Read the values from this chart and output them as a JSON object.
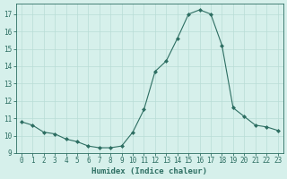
{
  "x": [
    0,
    1,
    2,
    3,
    4,
    5,
    6,
    7,
    8,
    9,
    10,
    11,
    12,
    13,
    14,
    15,
    16,
    17,
    18,
    19,
    20,
    21,
    22,
    23
  ],
  "y": [
    10.8,
    10.6,
    10.2,
    10.1,
    9.8,
    9.65,
    9.4,
    9.3,
    9.3,
    9.4,
    10.2,
    11.5,
    13.7,
    14.3,
    15.6,
    17.0,
    17.25,
    17.0,
    15.2,
    11.6,
    11.1,
    10.6,
    10.5,
    10.3
  ],
  "xlabel": "Humidex (Indice chaleur)",
  "ylim": [
    9,
    17.6
  ],
  "xlim": [
    -0.5,
    23.5
  ],
  "yticks": [
    9,
    10,
    11,
    12,
    13,
    14,
    15,
    16,
    17
  ],
  "xticks": [
    0,
    1,
    2,
    3,
    4,
    5,
    6,
    7,
    8,
    9,
    10,
    11,
    12,
    13,
    14,
    15,
    16,
    17,
    18,
    19,
    20,
    21,
    22,
    23
  ],
  "line_color": "#2d6e62",
  "marker": "D",
  "marker_size": 2.0,
  "bg_color": "#d6f0eb",
  "grid_color": "#b8ddd6",
  "text_color": "#2d6e62",
  "font_family": "monospace",
  "tick_fontsize": 5.5,
  "xlabel_fontsize": 6.5
}
